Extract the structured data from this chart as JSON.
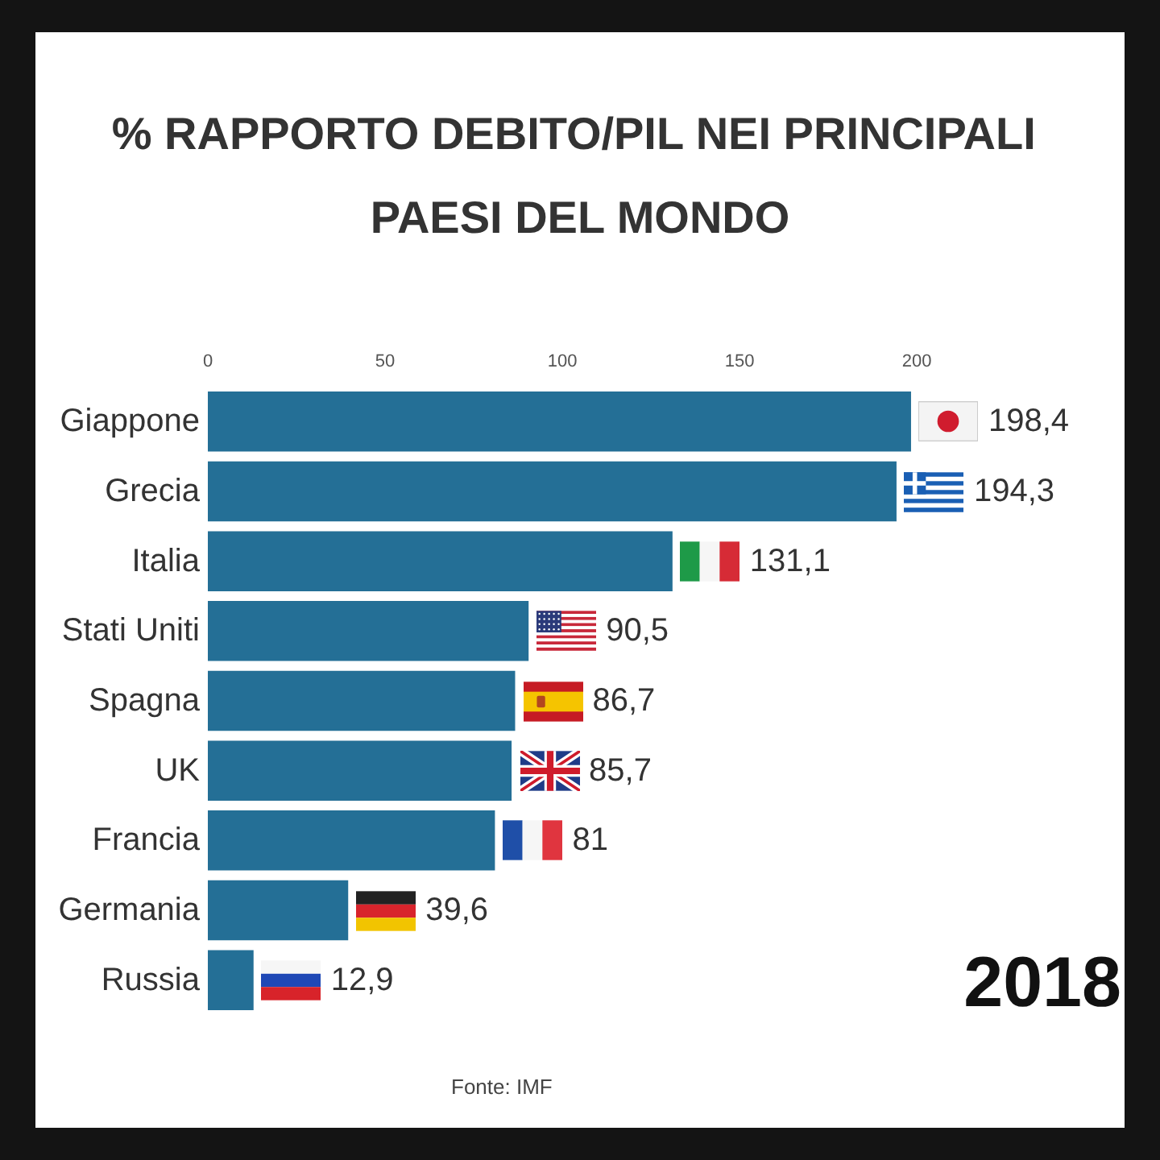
{
  "chart_data": {
    "type": "bar",
    "orientation": "horizontal",
    "title": "% RAPPORTO DEBITO/PIL NEI PRINCIPALI PAESI DEL MONDO",
    "categories": [
      "Giappone",
      "Grecia",
      "Italia",
      "Stati Uniti",
      "Spagna",
      "UK",
      "Francia",
      "Germania",
      "Russia"
    ],
    "values": [
      198.4,
      194.3,
      131.1,
      90.5,
      86.7,
      85.7,
      81,
      39.6,
      12.9
    ],
    "value_labels": [
      "198,4",
      "194,3",
      "131,1",
      "90,5",
      "86,7",
      "85,7",
      "81",
      "39,6",
      "12,9"
    ],
    "color": "#246f96",
    "xlim": [
      0,
      200
    ],
    "xticks": [
      0,
      50,
      100,
      150,
      200
    ],
    "annotations": [
      "2018",
      "Fonte: IMF"
    ]
  }
}
